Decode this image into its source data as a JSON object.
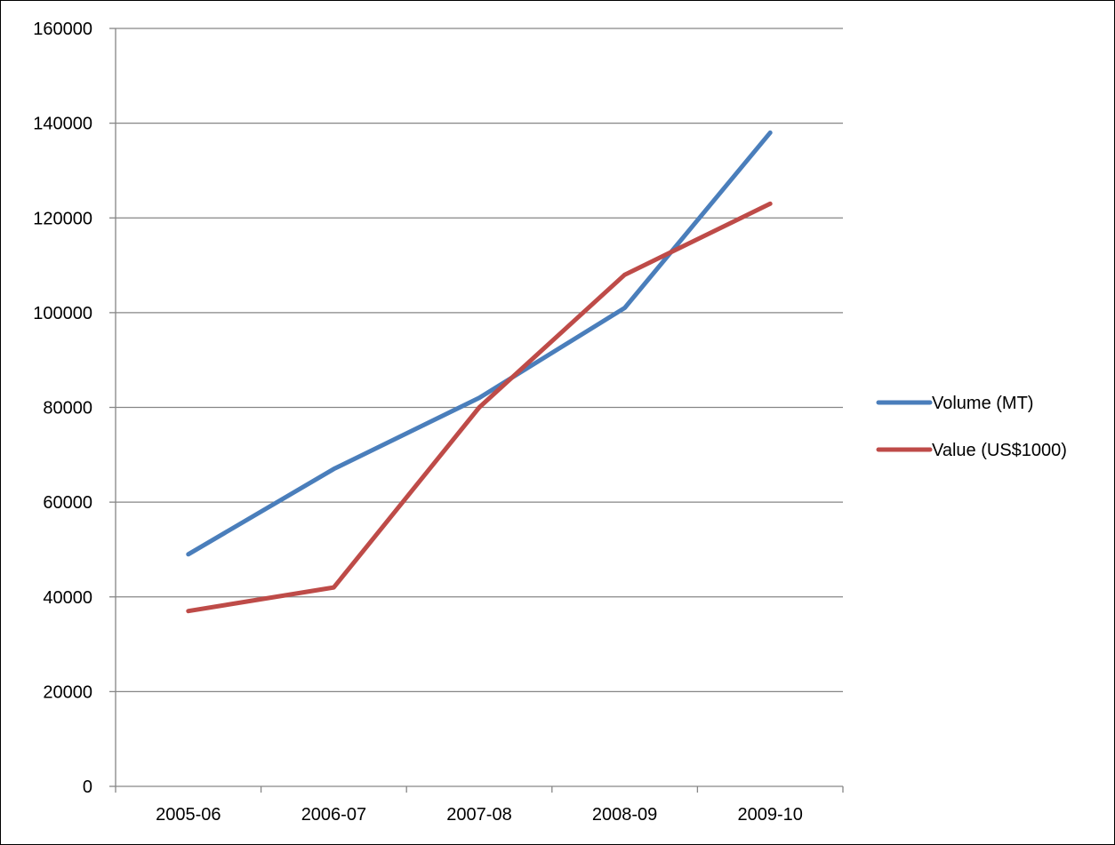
{
  "chart_data": {
    "type": "line",
    "title": "",
    "xlabel": "",
    "ylabel": "",
    "categories": [
      "2005-06",
      "2006-07",
      "2007-08",
      "2008-09",
      "2009-10"
    ],
    "series": [
      {
        "name": "Volume (MT)",
        "color": "#4a7ebb",
        "values": [
          49000,
          67000,
          82000,
          101000,
          138000
        ]
      },
      {
        "name": "Value (US$1000)",
        "color": "#be4b48",
        "values": [
          37000,
          42000,
          80000,
          108000,
          123000
        ]
      }
    ],
    "ylim": [
      0,
      160000
    ],
    "yticks": [
      "0",
      "20000",
      "40000",
      "60000",
      "80000",
      "100000",
      "120000",
      "140000",
      "160000"
    ],
    "grid": true,
    "legend_position": "right"
  },
  "colors": {
    "gridline": "#868686",
    "axis": "#868686"
  }
}
